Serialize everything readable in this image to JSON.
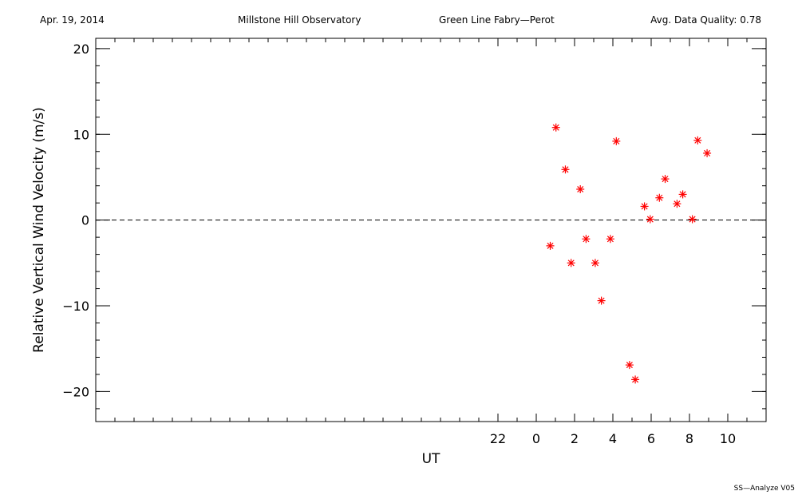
{
  "header": {
    "date": "Apr. 19, 2014",
    "observatory": "Millstone Hill Observatory",
    "instrument": "Green Line Fabry—Perot",
    "quality": "Avg. Data Quality: 0.78"
  },
  "footer": "SS—Analyze V05",
  "chart_data": {
    "type": "scatter",
    "xlabel": "UT",
    "ylabel": "Relative Vertical Wind Velocity (m/s)",
    "xlim": [
      -23,
      12
    ],
    "ylim": [
      -23.5,
      21.2
    ],
    "x_ticks": [
      22,
      0,
      2,
      4,
      6,
      8,
      10
    ],
    "y_ticks": [
      20,
      10,
      0,
      -10,
      -20
    ],
    "zero_line": "dashed",
    "marker_color": "#ff0000",
    "series": [
      {
        "x": [
          0.73,
          1.03,
          1.52,
          1.82,
          2.3,
          2.6,
          3.08,
          3.4,
          3.87,
          4.18,
          4.87,
          5.17,
          5.65,
          5.95,
          6.43,
          6.73,
          7.35,
          7.65,
          8.15,
          8.43,
          8.92
        ],
        "y": [
          -3.0,
          10.8,
          5.9,
          -5.0,
          3.6,
          -2.2,
          -5.0,
          -9.4,
          -2.2,
          9.2,
          -16.9,
          -18.6,
          1.6,
          0.1,
          2.6,
          4.8,
          1.9,
          3.0,
          0.1,
          9.3,
          7.8
        ]
      }
    ]
  }
}
